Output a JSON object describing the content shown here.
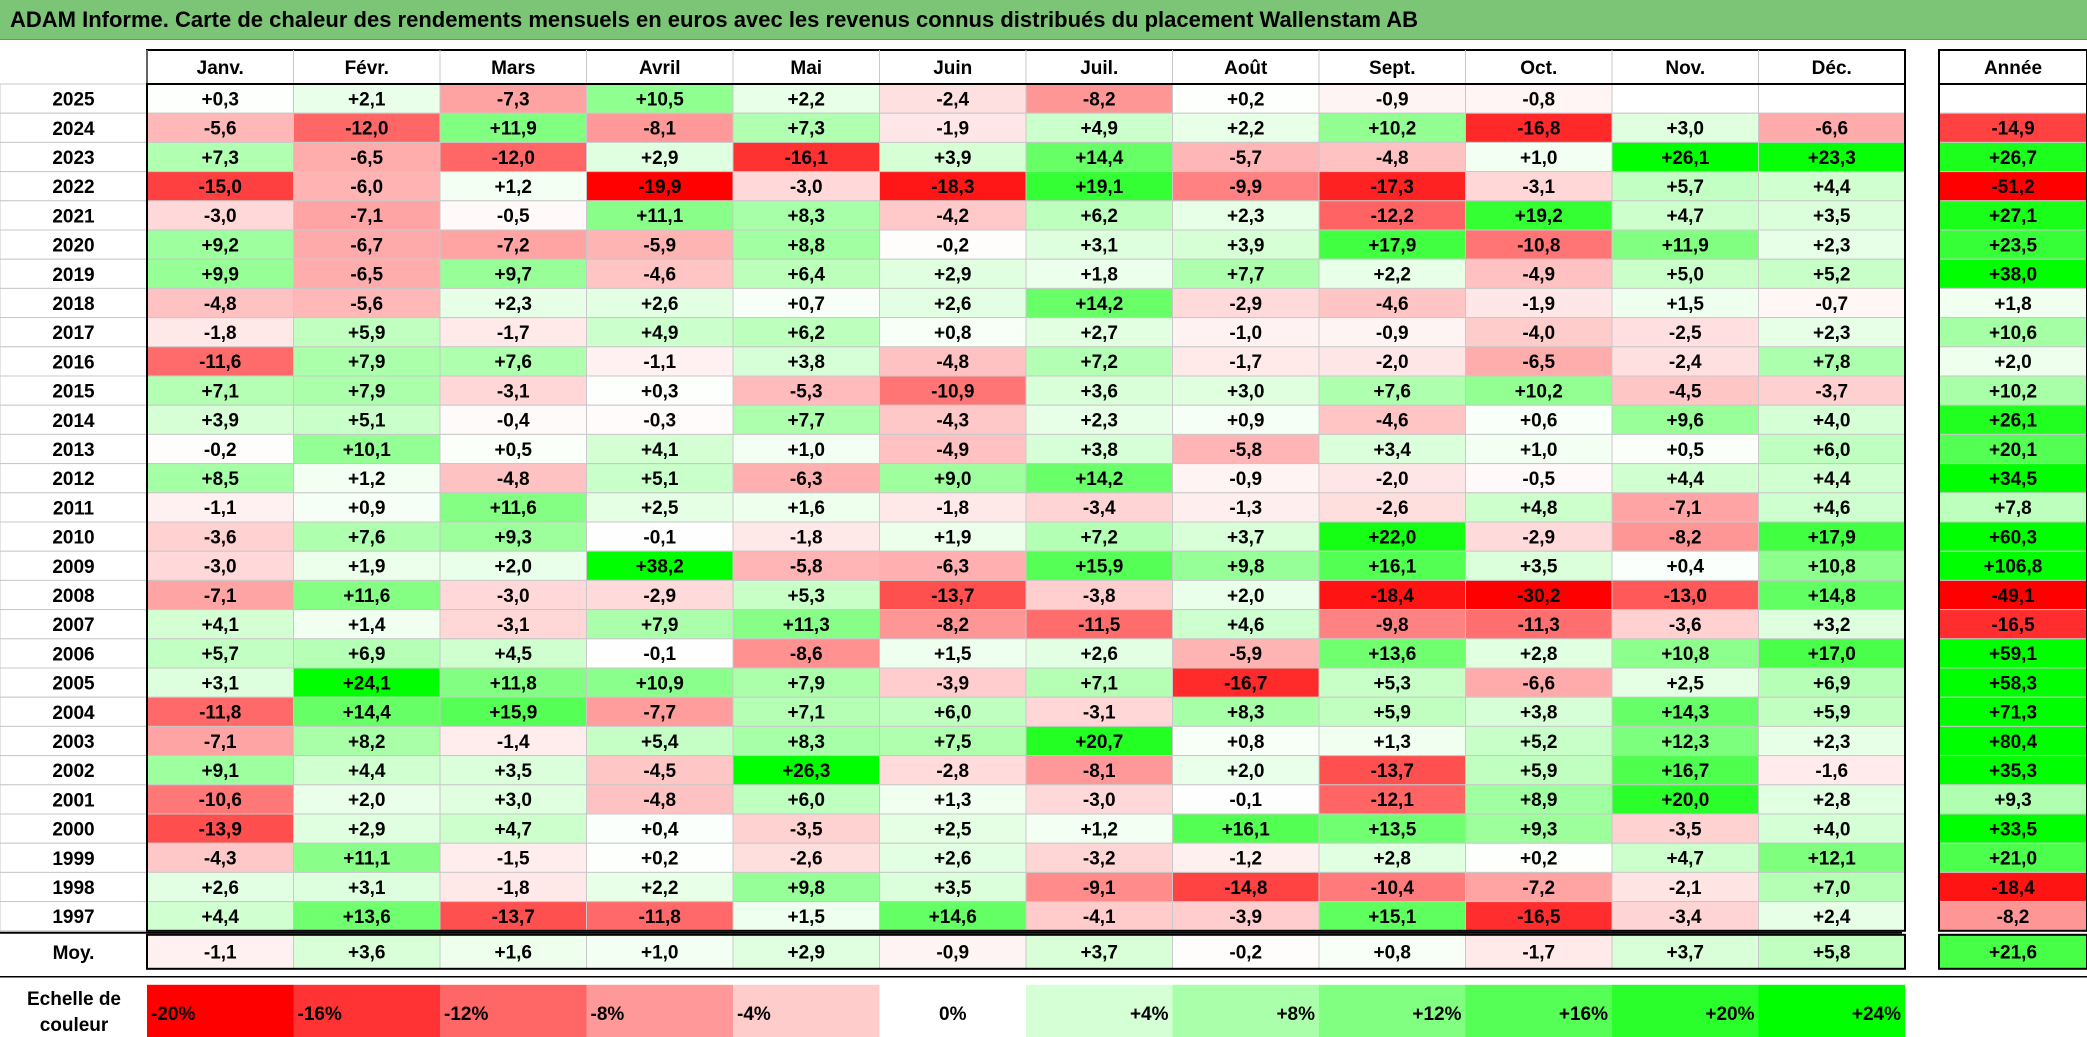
{
  "title": "ADAM Informe. Carte de chaleur des rendements mensuels en euros avec les revenus connus distribués du placement Wallenstam AB",
  "chart_data": {
    "type": "heatmap",
    "months": [
      "Janv.",
      "Févr.",
      "Mars",
      "Avril",
      "Mai",
      "Juin",
      "Juil.",
      "Août",
      "Sept.",
      "Oct.",
      "Nov.",
      "Déc."
    ],
    "year_header": "Année",
    "rows": [
      {
        "year": "2025",
        "values": [
          "+0,3",
          "+2,1",
          "-7,3",
          "+10,5",
          "+2,2",
          "-2,4",
          "-8,2",
          "+0,2",
          "-0,9",
          "-0,8",
          "",
          ""
        ],
        "annual": ""
      },
      {
        "year": "2024",
        "values": [
          "-5,6",
          "-12,0",
          "+11,9",
          "-8,1",
          "+7,3",
          "-1,9",
          "+4,9",
          "+2,2",
          "+10,2",
          "-16,8",
          "+3,0",
          "-6,6"
        ],
        "annual": "-14,9"
      },
      {
        "year": "2023",
        "values": [
          "+7,3",
          "-6,5",
          "-12,0",
          "+2,9",
          "-16,1",
          "+3,9",
          "+14,4",
          "-5,7",
          "-4,8",
          "+1,0",
          "+26,1",
          "+23,3"
        ],
        "annual": "+26,7"
      },
      {
        "year": "2022",
        "values": [
          "-15,0",
          "-6,0",
          "+1,2",
          "-19,9",
          "-3,0",
          "-18,3",
          "+19,1",
          "-9,9",
          "-17,3",
          "-3,1",
          "+5,7",
          "+4,4"
        ],
        "annual": "-51,2"
      },
      {
        "year": "2021",
        "values": [
          "-3,0",
          "-7,1",
          "-0,5",
          "+11,1",
          "+8,3",
          "-4,2",
          "+6,2",
          "+2,3",
          "-12,2",
          "+19,2",
          "+4,7",
          "+3,5"
        ],
        "annual": "+27,1"
      },
      {
        "year": "2020",
        "values": [
          "+9,2",
          "-6,7",
          "-7,2",
          "-5,9",
          "+8,8",
          "-0,2",
          "+3,1",
          "+3,9",
          "+17,9",
          "-10,8",
          "+11,9",
          "+2,3"
        ],
        "annual": "+23,5"
      },
      {
        "year": "2019",
        "values": [
          "+9,9",
          "-6,5",
          "+9,7",
          "-4,6",
          "+6,4",
          "+2,9",
          "+1,8",
          "+7,7",
          "+2,2",
          "-4,9",
          "+5,0",
          "+5,2"
        ],
        "annual": "+38,0"
      },
      {
        "year": "2018",
        "values": [
          "-4,8",
          "-5,6",
          "+2,3",
          "+2,6",
          "+0,7",
          "+2,6",
          "+14,2",
          "-2,9",
          "-4,6",
          "-1,9",
          "+1,5",
          "-0,7"
        ],
        "annual": "+1,8"
      },
      {
        "year": "2017",
        "values": [
          "-1,8",
          "+5,9",
          "-1,7",
          "+4,9",
          "+6,2",
          "+0,8",
          "+2,7",
          "-1,0",
          "-0,9",
          "-4,0",
          "-2,5",
          "+2,3"
        ],
        "annual": "+10,6"
      },
      {
        "year": "2016",
        "values": [
          "-11,6",
          "+7,9",
          "+7,6",
          "-1,1",
          "+3,8",
          "-4,8",
          "+7,2",
          "-1,7",
          "-2,0",
          "-6,5",
          "-2,4",
          "+7,8"
        ],
        "annual": "+2,0"
      },
      {
        "year": "2015",
        "values": [
          "+7,1",
          "+7,9",
          "-3,1",
          "+0,3",
          "-5,3",
          "-10,9",
          "+3,6",
          "+3,0",
          "+7,6",
          "+10,2",
          "-4,5",
          "-3,7"
        ],
        "annual": "+10,2"
      },
      {
        "year": "2014",
        "values": [
          "+3,9",
          "+5,1",
          "-0,4",
          "-0,3",
          "+7,7",
          "-4,3",
          "+2,3",
          "+0,9",
          "-4,6",
          "+0,6",
          "+9,6",
          "+4,0"
        ],
        "annual": "+26,1"
      },
      {
        "year": "2013",
        "values": [
          "-0,2",
          "+10,1",
          "+0,5",
          "+4,1",
          "+1,0",
          "-4,9",
          "+3,8",
          "-5,8",
          "+3,4",
          "+1,0",
          "+0,5",
          "+6,0"
        ],
        "annual": "+20,1"
      },
      {
        "year": "2012",
        "values": [
          "+8,5",
          "+1,2",
          "-4,8",
          "+5,1",
          "-6,3",
          "+9,0",
          "+14,2",
          "-0,9",
          "-2,0",
          "-0,5",
          "+4,4",
          "+4,4"
        ],
        "annual": "+34,5"
      },
      {
        "year": "2011",
        "values": [
          "-1,1",
          "+0,9",
          "+11,6",
          "+2,5",
          "+1,6",
          "-1,8",
          "-3,4",
          "-1,3",
          "-2,6",
          "+4,8",
          "-7,1",
          "+4,6"
        ],
        "annual": "+7,8"
      },
      {
        "year": "2010",
        "values": [
          "-3,6",
          "+7,6",
          "+9,3",
          "-0,1",
          "-1,8",
          "+1,9",
          "+7,2",
          "+3,7",
          "+22,0",
          "-2,9",
          "-8,2",
          "+17,9"
        ],
        "annual": "+60,3"
      },
      {
        "year": "2009",
        "values": [
          "-3,0",
          "+1,9",
          "+2,0",
          "+38,2",
          "-5,8",
          "-6,3",
          "+15,9",
          "+9,8",
          "+16,1",
          "+3,5",
          "+0,4",
          "+10,8"
        ],
        "annual": "+106,8"
      },
      {
        "year": "2008",
        "values": [
          "-7,1",
          "+11,6",
          "-3,0",
          "-2,9",
          "+5,3",
          "-13,7",
          "-3,8",
          "+2,0",
          "-18,4",
          "-30,2",
          "-13,0",
          "+14,8"
        ],
        "annual": "-49,1"
      },
      {
        "year": "2007",
        "values": [
          "+4,1",
          "+1,4",
          "-3,1",
          "+7,9",
          "+11,3",
          "-8,2",
          "-11,5",
          "+4,6",
          "-9,8",
          "-11,3",
          "-3,6",
          "+3,2"
        ],
        "annual": "-16,5"
      },
      {
        "year": "2006",
        "values": [
          "+5,7",
          "+6,9",
          "+4,5",
          "-0,1",
          "-8,6",
          "+1,5",
          "+2,6",
          "-5,9",
          "+13,6",
          "+2,8",
          "+10,8",
          "+17,0"
        ],
        "annual": "+59,1"
      },
      {
        "year": "2005",
        "values": [
          "+3,1",
          "+24,1",
          "+11,8",
          "+10,9",
          "+7,9",
          "-3,9",
          "+7,1",
          "-16,7",
          "+5,3",
          "-6,6",
          "+2,5",
          "+6,9"
        ],
        "annual": "+58,3"
      },
      {
        "year": "2004",
        "values": [
          "-11,8",
          "+14,4",
          "+15,9",
          "-7,7",
          "+7,1",
          "+6,0",
          "-3,1",
          "+8,3",
          "+5,9",
          "+3,8",
          "+14,3",
          "+5,9"
        ],
        "annual": "+71,3"
      },
      {
        "year": "2003",
        "values": [
          "-7,1",
          "+8,2",
          "-1,4",
          "+5,4",
          "+8,3",
          "+7,5",
          "+20,7",
          "+0,8",
          "+1,3",
          "+5,2",
          "+12,3",
          "+2,3"
        ],
        "annual": "+80,4"
      },
      {
        "year": "2002",
        "values": [
          "+9,1",
          "+4,4",
          "+3,5",
          "-4,5",
          "+26,3",
          "-2,8",
          "-8,1",
          "+2,0",
          "-13,7",
          "+5,9",
          "+16,7",
          "-1,6"
        ],
        "annual": "+35,3"
      },
      {
        "year": "2001",
        "values": [
          "-10,6",
          "+2,0",
          "+3,0",
          "-4,8",
          "+6,0",
          "+1,3",
          "-3,0",
          "-0,1",
          "-12,1",
          "+8,9",
          "+20,0",
          "+2,8"
        ],
        "annual": "+9,3"
      },
      {
        "year": "2000",
        "values": [
          "-13,9",
          "+2,9",
          "+4,7",
          "+0,4",
          "-3,5",
          "+2,5",
          "+1,2",
          "+16,1",
          "+13,5",
          "+9,3",
          "-3,5",
          "+4,0"
        ],
        "annual": "+33,5"
      },
      {
        "year": "1999",
        "values": [
          "-4,3",
          "+11,1",
          "-1,5",
          "+0,2",
          "-2,6",
          "+2,6",
          "-3,2",
          "-1,2",
          "+2,8",
          "+0,2",
          "+4,7",
          "+12,1"
        ],
        "annual": "+21,0"
      },
      {
        "year": "1998",
        "values": [
          "+2,6",
          "+3,1",
          "-1,8",
          "+2,2",
          "+9,8",
          "+3,5",
          "-9,1",
          "-14,8",
          "-10,4",
          "-7,2",
          "-2,1",
          "+7,0"
        ],
        "annual": "-18,4"
      },
      {
        "year": "1997",
        "values": [
          "+4,4",
          "+13,6",
          "-13,7",
          "-11,8",
          "+1,5",
          "+14,6",
          "-4,1",
          "-3,9",
          "+15,1",
          "-16,5",
          "-3,4",
          "+2,4"
        ],
        "annual": "-8,2"
      }
    ],
    "average_row": {
      "label": "Moy.",
      "values": [
        "-1,1",
        "+3,6",
        "+1,6",
        "+1,0",
        "+2,9",
        "-0,9",
        "+3,7",
        "-0,2",
        "+0,8",
        "-1,7",
        "+3,7",
        "+5,8"
      ],
      "annual": "+21,6"
    },
    "scale": {
      "label_lines": [
        "Echelle de",
        "couleur"
      ],
      "stops": [
        "-20%",
        "-16%",
        "-12%",
        "-8%",
        "-4%",
        "0%",
        "+4%",
        "+8%",
        "+12%",
        "+16%",
        "+20%",
        "+24%"
      ]
    },
    "colors": {
      "max_negative": "#ff0000",
      "neutral": "#ffffff",
      "max_positive": "#00ff00",
      "title_bar": "#7cc576"
    }
  }
}
